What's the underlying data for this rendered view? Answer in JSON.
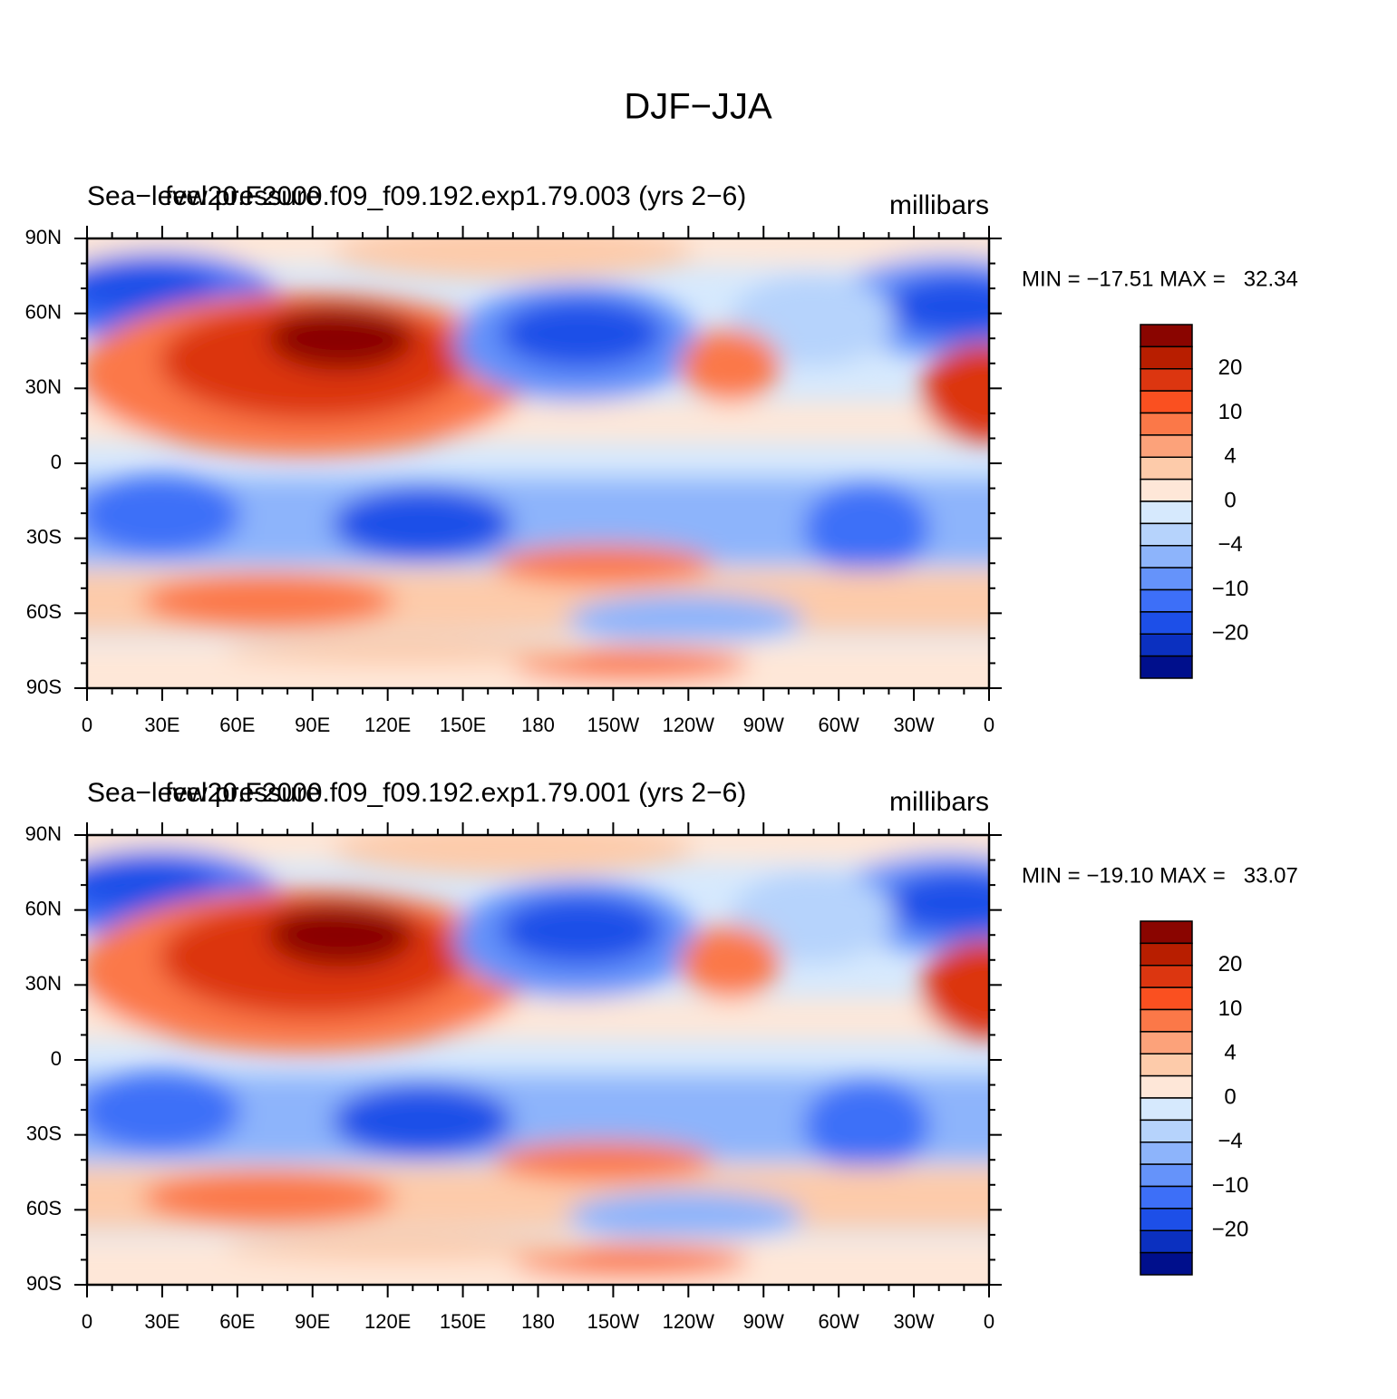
{
  "title": "DJF−JJA",
  "panels": [
    {
      "variable": "Sea−level pressure",
      "case": "few20.F2000.f09_f09.192.exp1.79.003 (yrs 2−6)",
      "units": "millibars",
      "stats": "MIN = −17.51 MAX =   32.34"
    },
    {
      "variable": "Sea−level pressure",
      "case": "few20.F2000.f09_f09.192.exp1.79.001 (yrs 2−6)",
      "units": "millibars",
      "stats": "MIN = −19.10 MAX =   33.07"
    }
  ],
  "lat_labels": [
    "90N",
    "60N",
    "30N",
    "0",
    "30S",
    "60S",
    "90S"
  ],
  "lon_labels": [
    "0",
    "30E",
    "60E",
    "90E",
    "120E",
    "150E",
    "180",
    "150W",
    "120W",
    "90W",
    "60W",
    "30W",
    "0"
  ],
  "colorbar": {
    "labels": [
      "20",
      "10",
      "4",
      "0",
      "−4",
      "−10",
      "−20"
    ],
    "colors": [
      "#8a0500",
      "#b81e00",
      "#dc3610",
      "#fa5020",
      "#fb7848",
      "#fca27a",
      "#fdcbaa",
      "#fee7d8",
      "#d6e9fd",
      "#b6d3fc",
      "#8db4fb",
      "#6593fa",
      "#3d6ff8",
      "#1d4fe8",
      "#0b30c0",
      "#000f8c"
    ]
  }
}
